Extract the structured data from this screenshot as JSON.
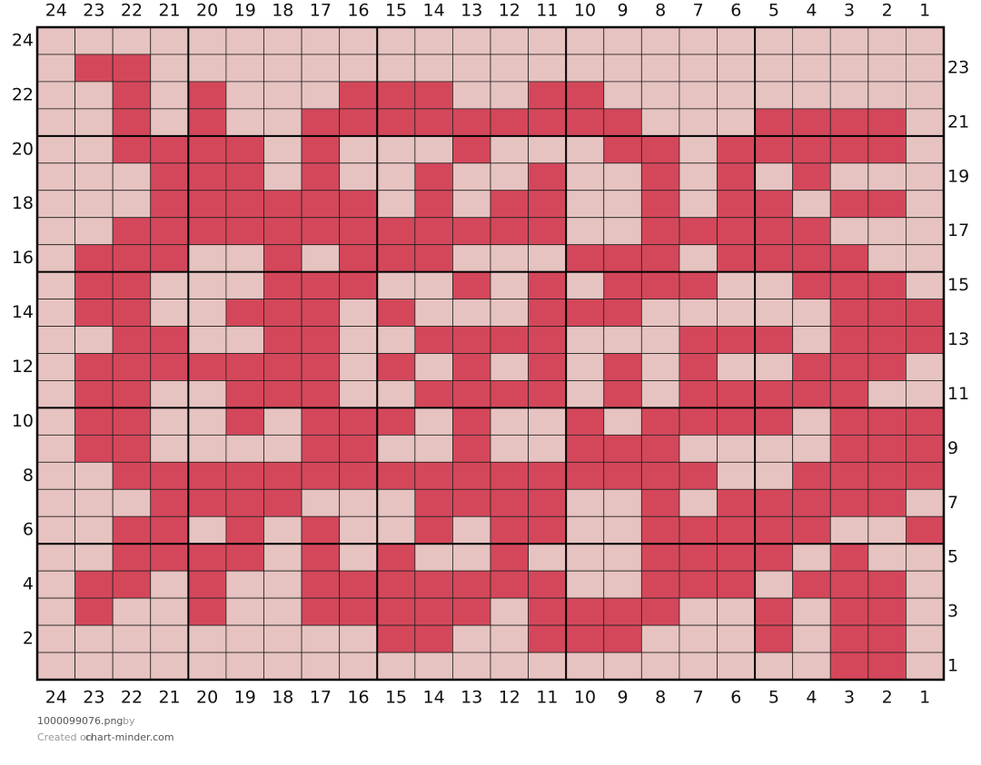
{
  "column_labels": [
    "24",
    "23",
    "22",
    "21",
    "20",
    "19",
    "18",
    "17",
    "16",
    "15",
    "14",
    "13",
    "12",
    "11",
    "10",
    "9",
    "8",
    "7",
    "6",
    "5",
    "4",
    "3",
    "2",
    "1"
  ],
  "row_labels": [
    "24",
    "23",
    "22",
    "21",
    "20",
    "19",
    "18",
    "17",
    "16",
    "15",
    "14",
    "13",
    "12",
    "11",
    "10",
    "9",
    "8",
    "7",
    "6",
    "5",
    "4",
    "3",
    "2",
    "1"
  ],
  "fill_colors": [
    "#e6c3c0",
    "#d4475a"
  ],
  "cells": [
    [
      0,
      0,
      0,
      0,
      0,
      0,
      0,
      0,
      0,
      0,
      0,
      0,
      0,
      0,
      0,
      0,
      0,
      0,
      0,
      0,
      0,
      0,
      0,
      0
    ],
    [
      0,
      1,
      1,
      0,
      0,
      0,
      0,
      0,
      0,
      0,
      0,
      0,
      0,
      0,
      0,
      0,
      0,
      0,
      0,
      0,
      0,
      0,
      0,
      0
    ],
    [
      0,
      0,
      1,
      0,
      1,
      0,
      0,
      0,
      1,
      1,
      1,
      0,
      0,
      1,
      1,
      0,
      0,
      0,
      0,
      0,
      0,
      0,
      0,
      0
    ],
    [
      0,
      0,
      1,
      0,
      1,
      0,
      0,
      1,
      1,
      1,
      1,
      1,
      1,
      1,
      1,
      1,
      0,
      0,
      0,
      1,
      1,
      1,
      1,
      0
    ],
    [
      0,
      0,
      1,
      1,
      1,
      1,
      0,
      1,
      0,
      0,
      0,
      1,
      0,
      0,
      0,
      1,
      1,
      0,
      1,
      1,
      1,
      1,
      1,
      0
    ],
    [
      0,
      0,
      0,
      1,
      1,
      1,
      0,
      1,
      0,
      0,
      1,
      0,
      0,
      1,
      0,
      0,
      1,
      0,
      1,
      0,
      1,
      0,
      0,
      0
    ],
    [
      0,
      0,
      0,
      1,
      1,
      1,
      1,
      1,
      1,
      0,
      1,
      0,
      1,
      1,
      0,
      0,
      1,
      0,
      1,
      1,
      0,
      1,
      1,
      0
    ],
    [
      0,
      0,
      1,
      1,
      1,
      1,
      1,
      1,
      1,
      1,
      1,
      1,
      1,
      1,
      0,
      0,
      1,
      1,
      1,
      1,
      1,
      0,
      0,
      0
    ],
    [
      0,
      1,
      1,
      1,
      0,
      0,
      1,
      0,
      1,
      1,
      1,
      0,
      0,
      0,
      1,
      1,
      1,
      0,
      1,
      1,
      1,
      1,
      0,
      0
    ],
    [
      0,
      1,
      1,
      0,
      0,
      0,
      1,
      1,
      1,
      0,
      0,
      1,
      0,
      1,
      0,
      1,
      1,
      1,
      0,
      0,
      1,
      1,
      1,
      0
    ],
    [
      0,
      1,
      1,
      0,
      0,
      1,
      1,
      1,
      0,
      1,
      0,
      0,
      0,
      1,
      1,
      1,
      0,
      0,
      0,
      0,
      0,
      1,
      1,
      1
    ],
    [
      0,
      0,
      1,
      1,
      0,
      0,
      1,
      1,
      0,
      0,
      1,
      1,
      1,
      1,
      0,
      0,
      0,
      1,
      1,
      1,
      0,
      1,
      1,
      1
    ],
    [
      0,
      1,
      1,
      1,
      1,
      1,
      1,
      1,
      0,
      1,
      0,
      1,
      0,
      1,
      0,
      1,
      0,
      1,
      0,
      0,
      1,
      1,
      1,
      0
    ],
    [
      0,
      1,
      1,
      0,
      0,
      1,
      1,
      1,
      0,
      0,
      1,
      1,
      1,
      1,
      0,
      1,
      0,
      1,
      1,
      1,
      1,
      1,
      0,
      0
    ],
    [
      0,
      1,
      1,
      0,
      0,
      1,
      0,
      1,
      1,
      1,
      0,
      1,
      0,
      0,
      1,
      0,
      1,
      1,
      1,
      1,
      0,
      1,
      1,
      1
    ],
    [
      0,
      1,
      1,
      0,
      0,
      0,
      0,
      1,
      1,
      0,
      0,
      1,
      0,
      0,
      1,
      1,
      1,
      0,
      0,
      0,
      0,
      1,
      1,
      1
    ],
    [
      0,
      0,
      1,
      1,
      1,
      1,
      1,
      1,
      1,
      1,
      1,
      1,
      1,
      1,
      1,
      1,
      1,
      1,
      0,
      0,
      1,
      1,
      1,
      1
    ],
    [
      0,
      0,
      0,
      1,
      1,
      1,
      1,
      0,
      0,
      0,
      1,
      1,
      1,
      1,
      0,
      0,
      1,
      0,
      1,
      1,
      1,
      1,
      1,
      0
    ],
    [
      0,
      0,
      1,
      1,
      0,
      1,
      0,
      1,
      0,
      0,
      1,
      0,
      1,
      1,
      0,
      0,
      1,
      1,
      1,
      1,
      1,
      0,
      0,
      1
    ],
    [
      0,
      0,
      1,
      1,
      1,
      1,
      0,
      1,
      0,
      1,
      0,
      0,
      1,
      0,
      0,
      0,
      1,
      1,
      1,
      1,
      0,
      1,
      0,
      0
    ],
    [
      0,
      1,
      1,
      0,
      1,
      0,
      0,
      1,
      1,
      1,
      1,
      1,
      1,
      1,
      0,
      0,
      1,
      1,
      1,
      0,
      1,
      1,
      1,
      0
    ],
    [
      0,
      1,
      0,
      0,
      1,
      0,
      0,
      1,
      1,
      1,
      1,
      1,
      0,
      1,
      1,
      1,
      1,
      0,
      0,
      1,
      0,
      1,
      1,
      0
    ],
    [
      0,
      0,
      0,
      0,
      0,
      0,
      0,
      0,
      0,
      1,
      1,
      0,
      0,
      1,
      1,
      1,
      0,
      0,
      0,
      1,
      0,
      1,
      1,
      0
    ],
    [
      0,
      0,
      0,
      0,
      0,
      0,
      0,
      0,
      0,
      0,
      0,
      0,
      0,
      0,
      0,
      0,
      0,
      0,
      0,
      0,
      0,
      1,
      1,
      0
    ]
  ],
  "footer": {
    "file": "1000099076.png",
    "by": "by",
    "created": "Created on",
    "site": "chart-minder.com"
  }
}
